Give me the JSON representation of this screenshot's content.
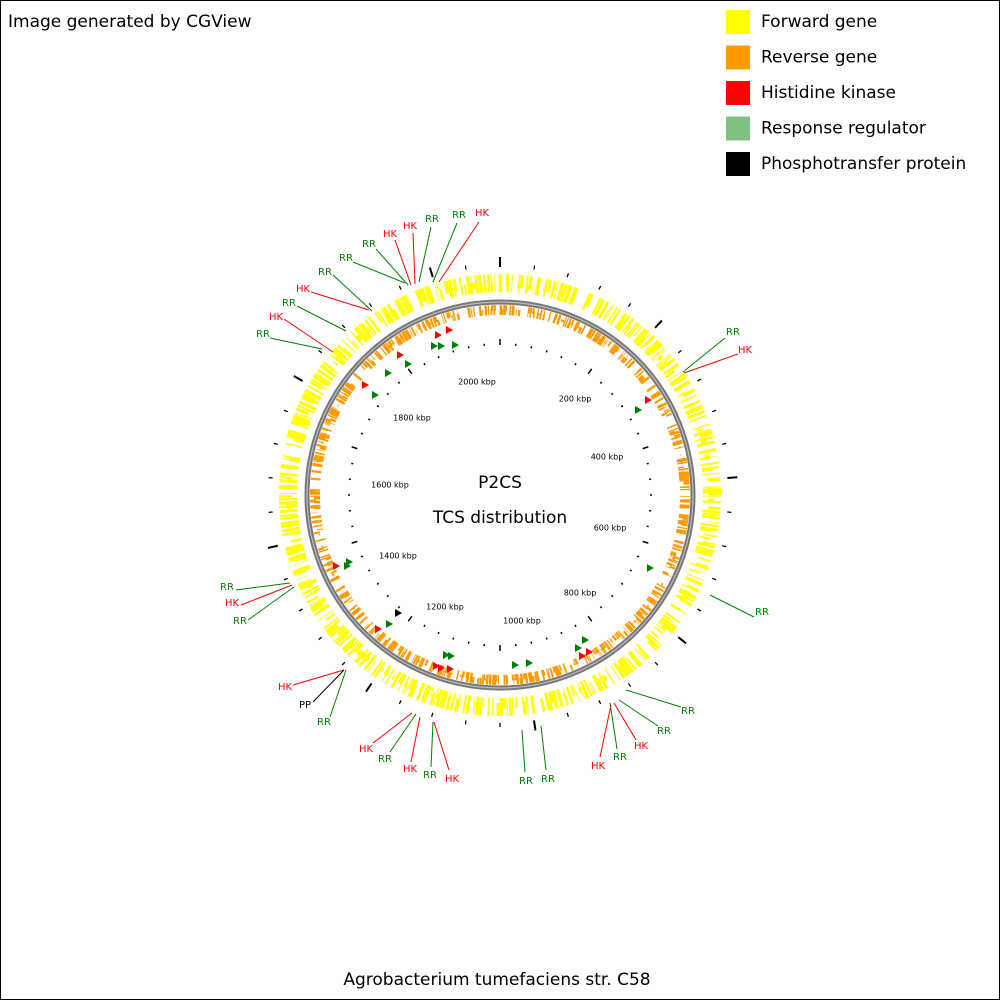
{
  "header": {
    "title": "Image generated by CGView"
  },
  "legend": [
    {
      "label": "Forward gene",
      "color": "#ffff00"
    },
    {
      "label": "Reverse gene",
      "color": "#ff9900"
    },
    {
      "label": "Histidine kinase",
      "color": "#ff0000"
    },
    {
      "label": "Response regulator",
      "color": "#80c080"
    },
    {
      "label": "Phosphotransfer protein",
      "color": "#000000"
    }
  ],
  "center": {
    "line1": "P2CS",
    "line2": "TCS distribution"
  },
  "scale_labels": [
    "200 kbp",
    "400 kbp",
    "600 kbp",
    "800 kbp",
    "1000 kbp",
    "1200 kbp",
    "1400 kbp",
    "1600 kbp",
    "1800 kbp",
    "2000 kbp"
  ],
  "features": [
    "RR",
    "HK",
    "RR",
    "HK",
    "RR",
    "RR",
    "RR",
    "HK",
    "HK",
    "RR",
    "RR",
    "HK",
    "RR",
    "HK",
    "RR",
    "RR",
    "RR",
    "HK",
    "RR",
    "HK",
    "RR",
    "RR",
    "HK",
    "RR",
    "HK",
    "RR",
    "HK",
    "HK",
    "PP",
    "RR",
    "RR",
    "HK",
    "RR"
  ],
  "footer": {
    "organism": "Agrobacterium tumefaciens str. C58"
  }
}
